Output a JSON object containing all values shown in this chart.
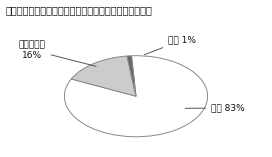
{
  "title": "図８　他医入院中を理由に減点、返戻受けたことあるか",
  "slices": [
    83,
    16,
    1
  ],
  "slice_labels": [
    "ない 83%",
    "わからない\n16%",
    "ある 1%"
  ],
  "colors": [
    "#ffffff",
    "#cccccc",
    "#666666"
  ],
  "edge_color": "#888888",
  "startangle": 93.6,
  "title_fontsize": 7.0,
  "label_fontsize": 6.5,
  "bg_color": "#ffffff",
  "box_color": "#cccccc"
}
